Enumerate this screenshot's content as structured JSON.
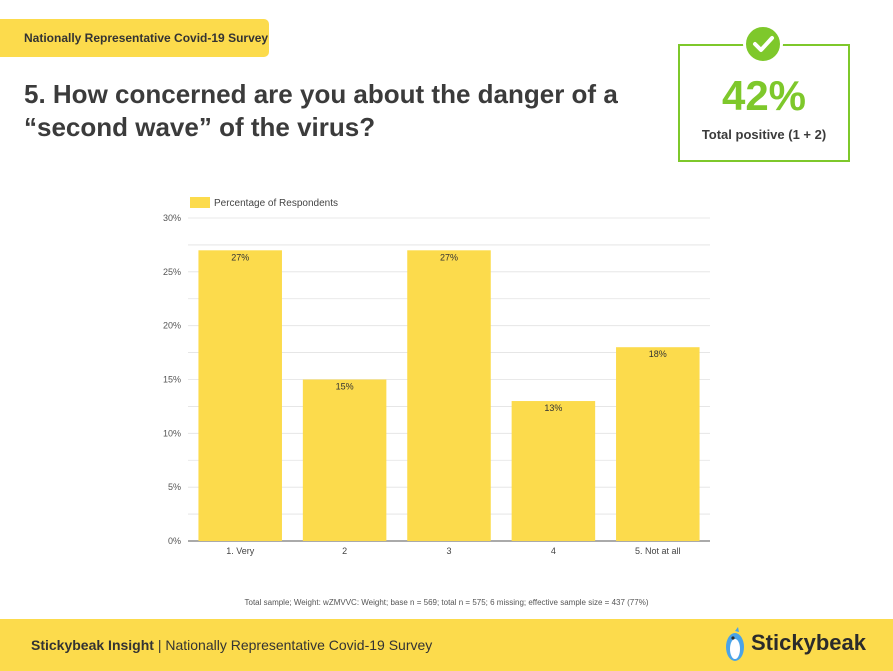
{
  "header": {
    "survey_tag": "Nationally Representative Covid-19 Survey",
    "question": "5. How concerned are you about the danger of a “second wave” of the virus?"
  },
  "stat": {
    "value": "42%",
    "caption": "Total positive (1 + 2)",
    "accent_color": "#7ec82b",
    "icon": "check-icon"
  },
  "chart_data": {
    "type": "bar",
    "categories": [
      "1. Very",
      "2",
      "3",
      "4",
      "5. Not at all"
    ],
    "series": [
      {
        "name": "Percentage of Respondents",
        "values": [
          27,
          15,
          27,
          13,
          18
        ],
        "color": "#fcdb4c"
      }
    ],
    "data_labels": [
      "27%",
      "15%",
      "27%",
      "13%",
      "18%"
    ],
    "y_ticks": [
      "0%",
      "5%",
      "10%",
      "15%",
      "20%",
      "25%",
      "30%"
    ],
    "ylim": [
      0,
      30
    ],
    "grid": true,
    "legend_position": "top-left"
  },
  "footnote": "Total sample; Weight: wZMVVC: Weight; base n = 569; total n = 575; 6 missing; effective sample size = 437 (77%)",
  "footer": {
    "brand_bold": "Stickybeak Insight",
    "separator": " | ",
    "subtitle": "Nationally Representative Covid-19 Survey",
    "logo_text": "Stickybeak",
    "bar_color": "#fcdb4c"
  }
}
